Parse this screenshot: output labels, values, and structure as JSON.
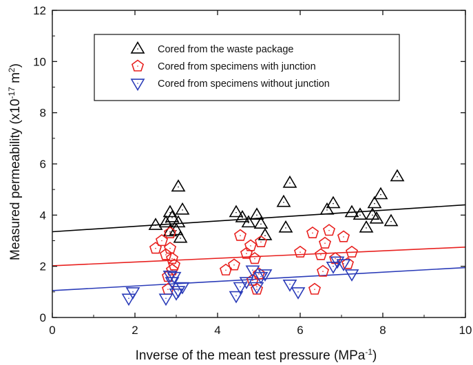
{
  "chart_data": {
    "type": "scatter",
    "xlabel": "Inverse of the mean test pressure (MPa",
    "xlabel_sup": "-1",
    "xlabel_end": ")",
    "ylabel": "Measured permeability (x10",
    "ylabel_sup": "-17",
    "ylabel_mid": " m",
    "ylabel_sup2": "2",
    "ylabel_end": ")",
    "xlim": [
      0,
      10
    ],
    "ylim": [
      0,
      12
    ],
    "x_ticks": [
      0,
      2,
      4,
      6,
      8,
      10
    ],
    "y_ticks": [
      0,
      2,
      4,
      6,
      8,
      10,
      12
    ],
    "legend_position": "top-center",
    "grid": false,
    "series": [
      {
        "name": "Cored from the waste package",
        "marker": "triangle-up",
        "color": "#000000",
        "x": [
          2.5,
          2.75,
          2.85,
          2.9,
          3.0,
          3.05,
          3.1,
          3.15,
          3.05,
          2.85,
          4.45,
          4.6,
          4.75,
          4.95,
          5.05,
          5.15,
          5.6,
          5.65,
          5.75,
          6.65,
          6.8,
          7.25,
          7.45,
          7.6,
          7.75,
          7.8,
          7.85,
          7.95,
          8.2,
          8.35
        ],
        "y": [
          3.6,
          3.7,
          4.1,
          3.9,
          3.4,
          5.1,
          3.1,
          4.2,
          3.7,
          3.35,
          4.1,
          3.9,
          3.7,
          4.0,
          3.65,
          3.2,
          4.5,
          3.5,
          5.25,
          4.2,
          4.45,
          4.1,
          4.0,
          3.5,
          4.0,
          4.45,
          3.85,
          4.8,
          3.75,
          5.5
        ]
      },
      {
        "name": "Cored from specimens with junction",
        "marker": "pentagon",
        "color": "#e8201e",
        "x": [
          2.5,
          2.65,
          2.75,
          2.85,
          2.85,
          2.8,
          2.9,
          2.95,
          2.9,
          2.8,
          4.2,
          4.4,
          4.55,
          4.7,
          4.8,
          4.85,
          4.9,
          4.95,
          5.0,
          5.05,
          6.0,
          6.3,
          6.35,
          6.5,
          6.55,
          6.6,
          6.7,
          6.85,
          7.05,
          7.15,
          7.25
        ],
        "y": [
          2.7,
          3.0,
          2.45,
          3.3,
          2.7,
          1.6,
          2.3,
          2.05,
          1.85,
          1.1,
          1.85,
          2.05,
          3.2,
          2.5,
          2.8,
          1.45,
          2.3,
          1.1,
          1.7,
          2.95,
          2.55,
          3.3,
          1.1,
          2.45,
          1.8,
          2.9,
          3.4,
          2.3,
          3.15,
          2.1,
          2.55
        ]
      },
      {
        "name": "Cored from specimens without junction",
        "marker": "triangle-down",
        "color": "#2a3bb8",
        "x": [
          1.85,
          1.95,
          2.75,
          2.85,
          2.9,
          2.95,
          3.0,
          3.05,
          3.15,
          4.45,
          4.55,
          4.7,
          4.85,
          4.95,
          5.05,
          5.15,
          5.75,
          5.95,
          6.8,
          6.9,
          7.05,
          7.25
        ],
        "y": [
          0.75,
          1.0,
          0.75,
          1.65,
          1.4,
          1.6,
          0.95,
          1.05,
          1.2,
          0.85,
          1.2,
          1.4,
          1.85,
          1.2,
          1.6,
          1.7,
          1.3,
          1.0,
          2.0,
          2.2,
          2.1,
          1.7
        ]
      }
    ],
    "fit_lines": [
      {
        "series": "Cored from the waste package",
        "color": "#000000",
        "x": [
          0,
          10
        ],
        "y": [
          3.35,
          4.4
        ]
      },
      {
        "series": "Cored from specimens with junction",
        "color": "#e8201e",
        "x": [
          0,
          10
        ],
        "y": [
          2.02,
          2.75
        ]
      },
      {
        "series": "Cored from specimens without junction",
        "color": "#2a3bb8",
        "x": [
          0,
          10
        ],
        "y": [
          1.05,
          1.95
        ]
      }
    ]
  }
}
